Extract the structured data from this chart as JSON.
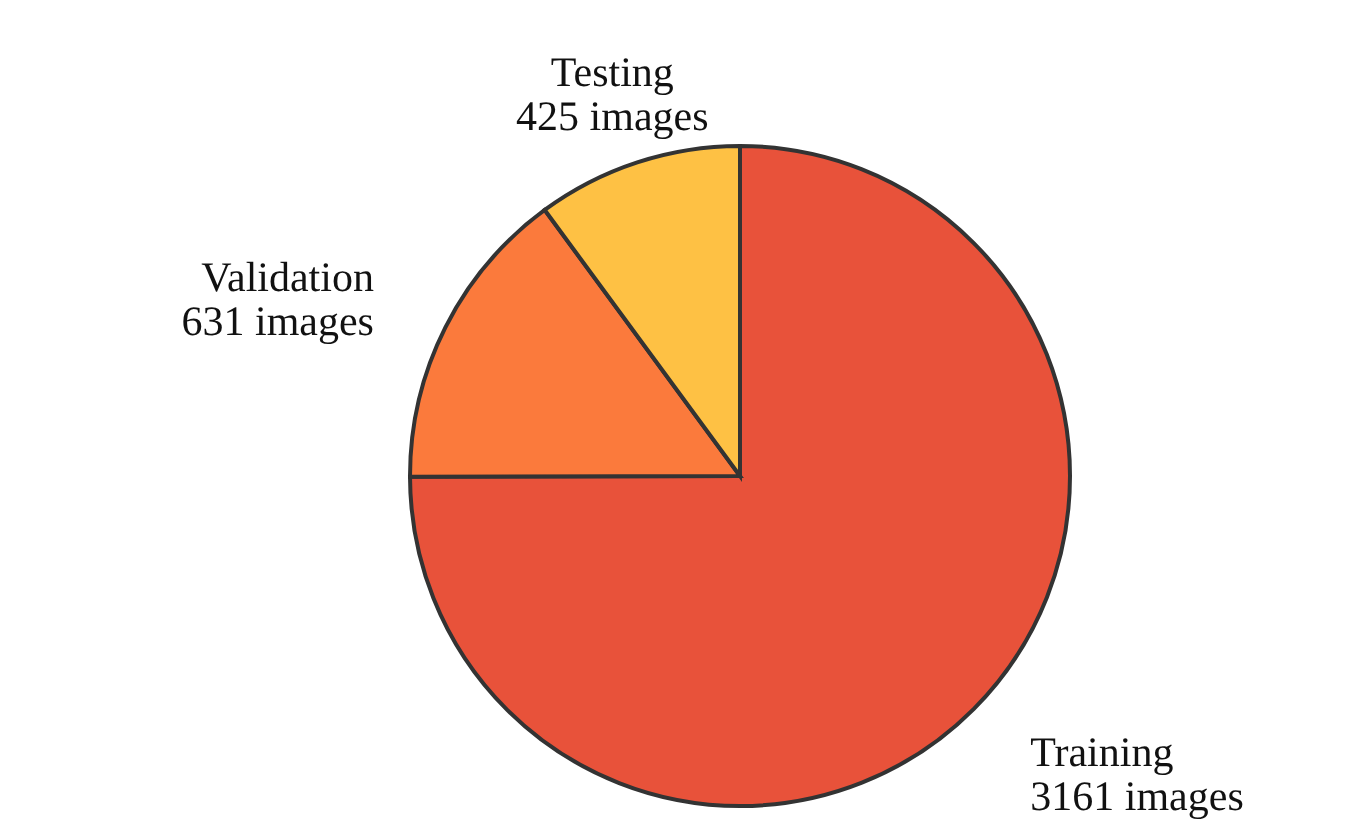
{
  "chart_data": {
    "type": "pie",
    "categories": [
      "Training",
      "Validation",
      "Testing"
    ],
    "values": [
      3161,
      631,
      425
    ],
    "colors": [
      "#e8523a",
      "#fb7a3c",
      "#fec144"
    ],
    "value_labels": [
      "3161 images",
      "631 images",
      "425 images"
    ],
    "legend": false
  }
}
